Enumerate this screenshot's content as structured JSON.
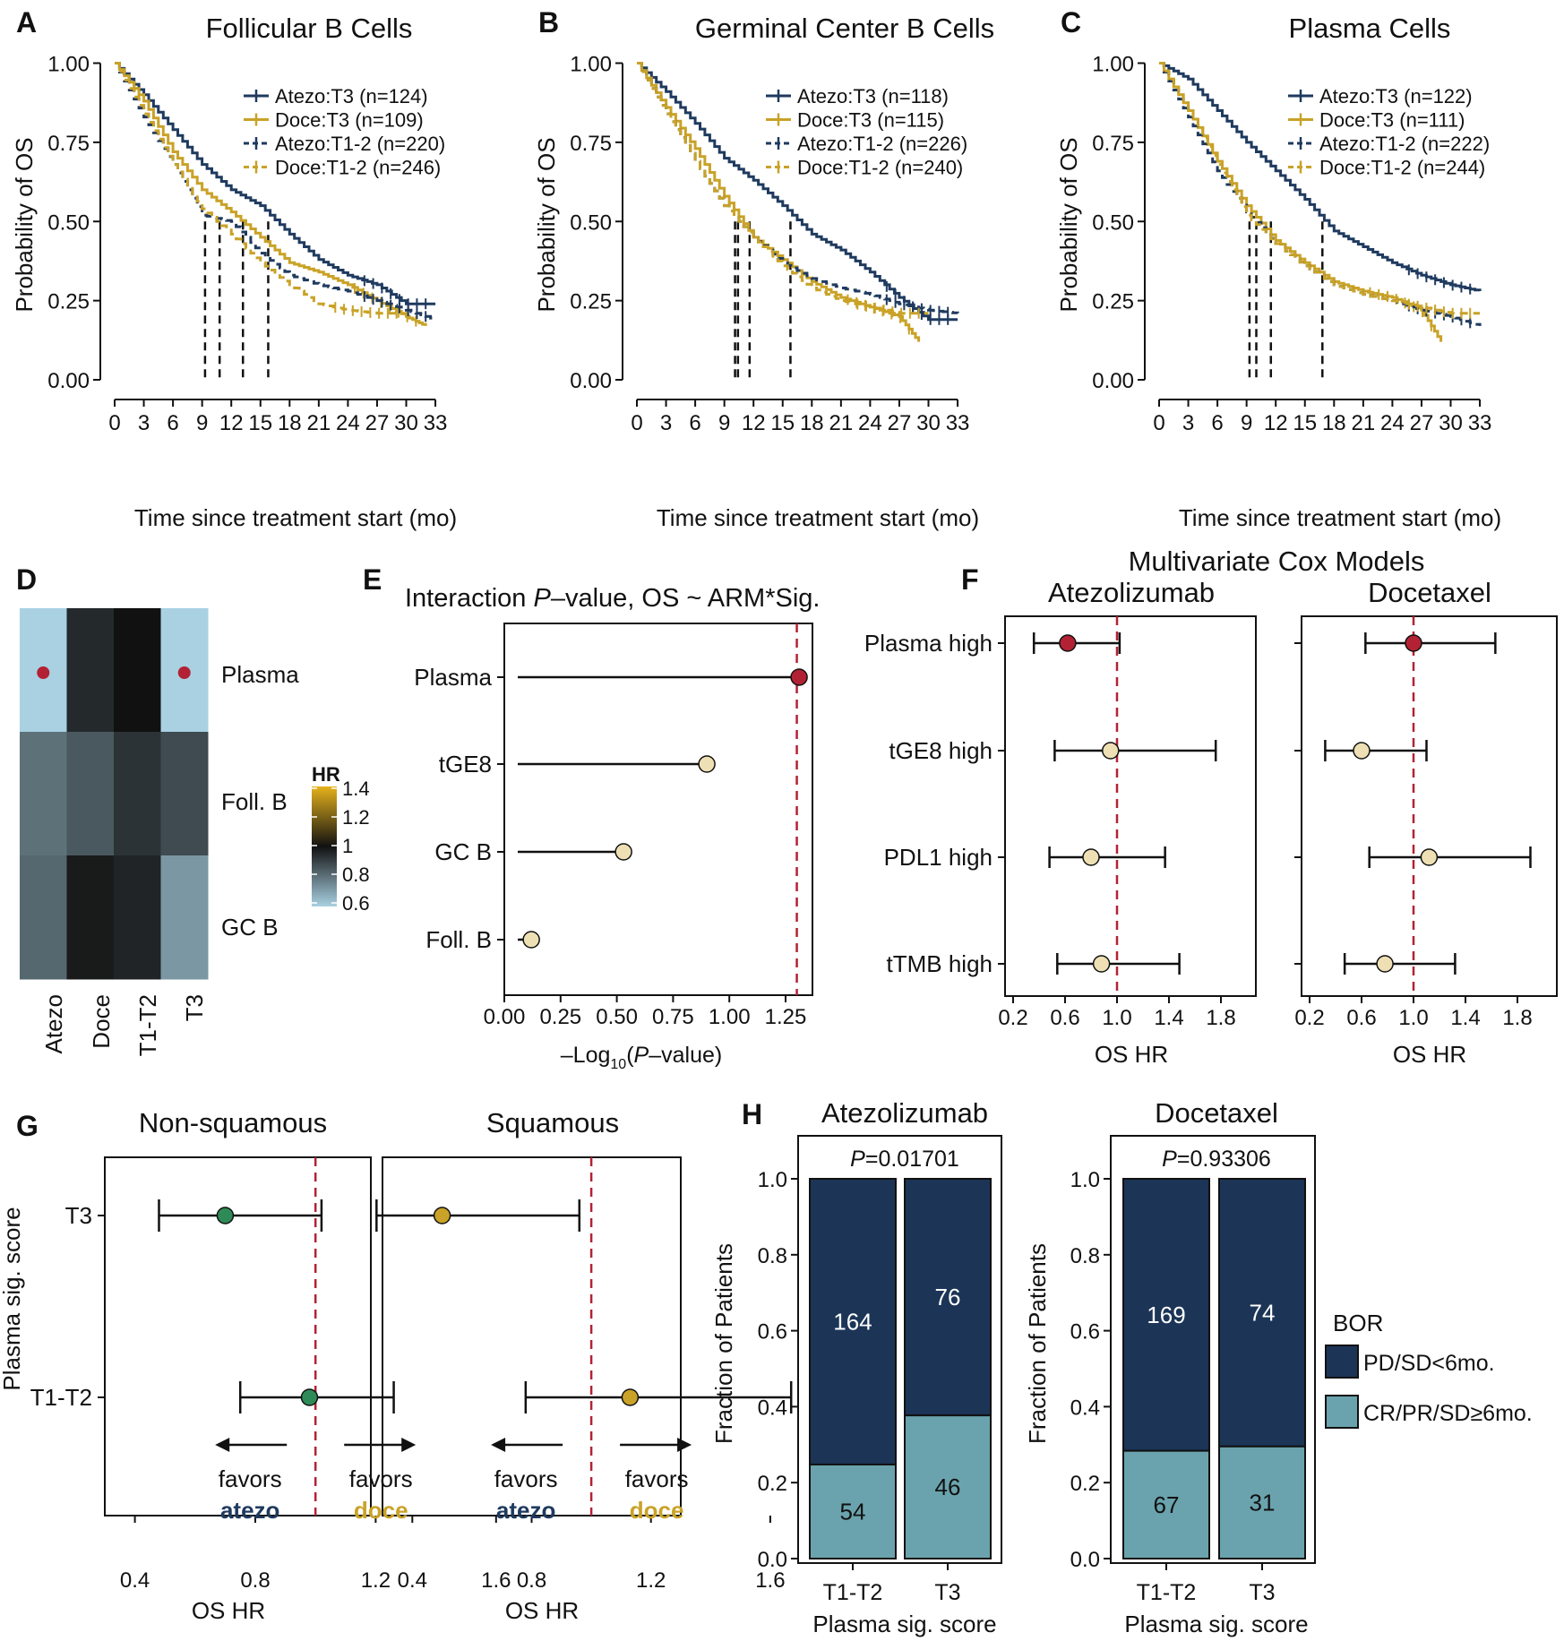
{
  "colors": {
    "atezo": "#1f3a5f",
    "doce": "#c9a227",
    "dash": "#111111",
    "sig_red": "#b22234",
    "nonsig": "#eee0b4",
    "green": "#2e8b57",
    "pd": "#1c3557",
    "cr": "#6aa3ad",
    "heat_low": "#a9d1e2",
    "heat_mid": "#111111",
    "heat_high": "#e5b21c"
  },
  "km": {
    "axis": {
      "ylabel": "Probability of OS",
      "xlabel": "Time since treatment start (mo)",
      "yticks": [
        "0.00",
        "0.25",
        "0.50",
        "0.75",
        "1.00"
      ],
      "xticks": [
        "0",
        "3",
        "6",
        "9",
        "12",
        "15",
        "18",
        "21",
        "24",
        "27",
        "30",
        "33"
      ]
    },
    "panels": [
      {
        "letter": "A",
        "title": "Follicular B Cells",
        "legend": [
          "Atezo:T3 (n=124)",
          "Doce:T3 (n=109)",
          "Atezo:T1-2 (n=220)",
          "Doce:T1-2 (n=246)"
        ],
        "medians": [
          9.3,
          10.8,
          13.2,
          15.8
        ],
        "curves": {
          "atezo_t3": [
            [
              0,
              1
            ],
            [
              3,
              0.9
            ],
            [
              6,
              0.79
            ],
            [
              9,
              0.68
            ],
            [
              12,
              0.6
            ],
            [
              15,
              0.55
            ],
            [
              18,
              0.46
            ],
            [
              21,
              0.38
            ],
            [
              24,
              0.33
            ],
            [
              27,
              0.3
            ],
            [
              30,
              0.24
            ],
            [
              33,
              0.24
            ]
          ],
          "doce_t3": [
            [
              0,
              1
            ],
            [
              3,
              0.88
            ],
            [
              6,
              0.72
            ],
            [
              9,
              0.6
            ],
            [
              12,
              0.53
            ],
            [
              15,
              0.45
            ],
            [
              18,
              0.37
            ],
            [
              21,
              0.34
            ],
            [
              24,
              0.3
            ],
            [
              27,
              0.25
            ],
            [
              30,
              0.2
            ],
            [
              32,
              0.17
            ]
          ],
          "atezo_t12": [
            [
              0,
              1
            ],
            [
              3,
              0.83
            ],
            [
              6,
              0.68
            ],
            [
              9,
              0.52
            ],
            [
              12,
              0.5
            ],
            [
              15,
              0.4
            ],
            [
              18,
              0.33
            ],
            [
              21,
              0.3
            ],
            [
              24,
              0.28
            ],
            [
              27,
              0.25
            ],
            [
              30,
              0.22
            ],
            [
              33,
              0.19
            ]
          ],
          "doce_t12": [
            [
              0,
              1
            ],
            [
              3,
              0.84
            ],
            [
              6,
              0.68
            ],
            [
              9,
              0.54
            ],
            [
              12,
              0.46
            ],
            [
              15,
              0.37
            ],
            [
              18,
              0.3
            ],
            [
              21,
              0.24
            ],
            [
              24,
              0.22
            ],
            [
              27,
              0.21
            ],
            [
              30,
              0.21
            ]
          ]
        }
      },
      {
        "letter": "B",
        "title": "Germinal Center B Cells",
        "legend": [
          "Atezo:T3 (n=118)",
          "Doce:T3 (n=115)",
          "Atezo:T1-2 (n=226)",
          "Doce:T1-2 (n=240)"
        ],
        "medians": [
          10.1,
          10.4,
          11.6,
          15.8
        ],
        "curves": {
          "atezo_t3": [
            [
              0,
              1
            ],
            [
              3,
              0.91
            ],
            [
              6,
              0.81
            ],
            [
              9,
              0.7
            ],
            [
              12,
              0.63
            ],
            [
              15,
              0.55
            ],
            [
              18,
              0.46
            ],
            [
              21,
              0.41
            ],
            [
              24,
              0.34
            ],
            [
              27,
              0.26
            ],
            [
              30,
              0.19
            ],
            [
              33,
              0.19
            ]
          ],
          "doce_t3": [
            [
              0,
              1
            ],
            [
              3,
              0.86
            ],
            [
              6,
              0.73
            ],
            [
              9,
              0.58
            ],
            [
              12,
              0.45
            ],
            [
              15,
              0.38
            ],
            [
              18,
              0.31
            ],
            [
              21,
              0.26
            ],
            [
              24,
              0.23
            ],
            [
              27,
              0.2
            ],
            [
              29,
              0.12
            ]
          ],
          "atezo_t12": [
            [
              0,
              1
            ],
            [
              3,
              0.84
            ],
            [
              6,
              0.69
            ],
            [
              9,
              0.55
            ],
            [
              12,
              0.45
            ],
            [
              15,
              0.37
            ],
            [
              18,
              0.32
            ],
            [
              21,
              0.29
            ],
            [
              24,
              0.27
            ],
            [
              27,
              0.24
            ],
            [
              30,
              0.22
            ],
            [
              33,
              0.21
            ]
          ],
          "doce_t12": [
            [
              0,
              1
            ],
            [
              3,
              0.84
            ],
            [
              6,
              0.69
            ],
            [
              9,
              0.55
            ],
            [
              12,
              0.45
            ],
            [
              15,
              0.36
            ],
            [
              18,
              0.29
            ],
            [
              21,
              0.25
            ],
            [
              24,
              0.23
            ],
            [
              27,
              0.21
            ],
            [
              30,
              0.21
            ]
          ]
        }
      },
      {
        "letter": "C",
        "title": "Plasma Cells",
        "legend": [
          "Atezo:T3 (n=122)",
          "Doce:T3 (n=111)",
          "Atezo:T1-2 (n=222)",
          "Doce:T1-2 (n=244)"
        ],
        "medians": [
          9.3,
          10.0,
          11.5,
          16.8
        ],
        "curves": {
          "atezo_t3": [
            [
              0,
              1
            ],
            [
              3,
              0.95
            ],
            [
              6,
              0.85
            ],
            [
              9,
              0.75
            ],
            [
              12,
              0.66
            ],
            [
              15,
              0.57
            ],
            [
              18,
              0.47
            ],
            [
              21,
              0.42
            ],
            [
              24,
              0.37
            ],
            [
              27,
              0.33
            ],
            [
              30,
              0.3
            ],
            [
              33,
              0.28
            ]
          ],
          "doce_t3": [
            [
              0,
              1
            ],
            [
              3,
              0.85
            ],
            [
              6,
              0.69
            ],
            [
              9,
              0.55
            ],
            [
              12,
              0.44
            ],
            [
              15,
              0.37
            ],
            [
              18,
              0.31
            ],
            [
              21,
              0.28
            ],
            [
              24,
              0.26
            ],
            [
              27,
              0.22
            ],
            [
              29,
              0.12
            ]
          ],
          "atezo_t12": [
            [
              0,
              1
            ],
            [
              3,
              0.83
            ],
            [
              6,
              0.66
            ],
            [
              9,
              0.53
            ],
            [
              12,
              0.43
            ],
            [
              15,
              0.36
            ],
            [
              18,
              0.3
            ],
            [
              21,
              0.27
            ],
            [
              24,
              0.25
            ],
            [
              27,
              0.22
            ],
            [
              30,
              0.2
            ],
            [
              33,
              0.17
            ]
          ],
          "doce_t12": [
            [
              0,
              1
            ],
            [
              3,
              0.85
            ],
            [
              6,
              0.68
            ],
            [
              9,
              0.52
            ],
            [
              12,
              0.43
            ],
            [
              15,
              0.36
            ],
            [
              18,
              0.3
            ],
            [
              21,
              0.27
            ],
            [
              24,
              0.25
            ],
            [
              27,
              0.23
            ],
            [
              30,
              0.21
            ],
            [
              33,
              0.21
            ]
          ]
        }
      }
    ]
  },
  "heatmap": {
    "letter": "D",
    "rows": [
      "Plasma",
      "Foll. B",
      "GC B"
    ],
    "cols": [
      "Atezo",
      "Doce",
      "T1-T2",
      "T3"
    ],
    "values": [
      [
        0.6,
        0.95,
        1.0,
        0.6
      ],
      [
        0.8,
        0.85,
        0.93,
        0.88
      ],
      [
        0.82,
        0.98,
        0.96,
        0.72
      ]
    ],
    "dots": [
      [
        0,
        0
      ],
      [
        0,
        3
      ]
    ],
    "legend_title": "HR",
    "legend_ticks": [
      "1.4",
      "1.2",
      "1",
      "0.8",
      "0.6"
    ]
  },
  "lollipop": {
    "letter": "E",
    "title_pre": "Interaction ",
    "title_italic": "P",
    "title_post": "–value, OS ~ ARM*Sig.",
    "labels": [
      "Plasma",
      "tGE8",
      "GC B",
      "Foll. B"
    ],
    "values": [
      1.31,
      0.9,
      0.53,
      0.12
    ],
    "significant": [
      true,
      false,
      false,
      false
    ],
    "threshold": 1.3,
    "xticks": [
      "0.00",
      "0.25",
      "0.50",
      "0.75",
      "1.00",
      "1.25"
    ],
    "xlabel_pre": "–Log",
    "xlabel_sub": "10",
    "xlabel_mid": "(",
    "xlabel_italic": "P",
    "xlabel_post": "–value)"
  },
  "cox": {
    "letter": "F",
    "title": "Multivariate Cox Models",
    "labels": [
      "Plasma high",
      "tGE8 high",
      "PDL1 high",
      "tTMB high"
    ],
    "xticks": [
      "0.2",
      "0.6",
      "1.0",
      "1.4",
      "1.8"
    ],
    "xlabel": "OS HR",
    "panels": [
      {
        "name": "Atezolizumab",
        "hr": [
          0.62,
          0.95,
          0.8,
          0.88
        ],
        "lo": [
          0.36,
          0.52,
          0.48,
          0.54
        ],
        "hi": [
          1.02,
          1.76,
          1.37,
          1.48
        ],
        "sig": [
          true,
          false,
          false,
          false
        ]
      },
      {
        "name": "Docetaxel",
        "hr": [
          1.0,
          0.6,
          1.12,
          0.78
        ],
        "lo": [
          0.63,
          0.32,
          0.66,
          0.47
        ],
        "hi": [
          1.63,
          1.1,
          1.9,
          1.32
        ],
        "sig": [
          true,
          false,
          false,
          false
        ]
      }
    ]
  },
  "subgroup": {
    "letter": "G",
    "ylabel": "Plasma sig. score",
    "labels": [
      "T3",
      "T1-T2"
    ],
    "xticks": [
      "0.4",
      "0.8",
      "1.2",
      "1.6"
    ],
    "xlabel": "OS HR",
    "favors": "favors",
    "atezo_word": "atezo",
    "doce_word": "doce",
    "panels": [
      {
        "name": "Non-squamous",
        "hr": [
          0.7,
          0.98
        ],
        "lo": [
          0.48,
          0.75
        ],
        "hi": [
          1.02,
          1.26
        ]
      },
      {
        "name": "Squamous",
        "hr": [
          0.5,
          1.13
        ],
        "lo": [
          0.28,
          0.78
        ],
        "hi": [
          0.96,
          1.67
        ]
      }
    ]
  },
  "bor": {
    "letter": "H",
    "ylabel": "Fraction of Patients",
    "xlabel": "Plasma sig. score",
    "categories": [
      "T1-T2",
      "T3"
    ],
    "yticks": [
      "0.0",
      "0.2",
      "0.4",
      "0.6",
      "0.8",
      "1.0"
    ],
    "legend_title": "BOR",
    "legend_items": [
      "PD/SD<6mo.",
      "CR/PR/SD≥6mo."
    ],
    "p_label": "P",
    "panels": [
      {
        "name": "Atezolizumab",
        "p_value": "=0.01701",
        "pd": [
          164,
          76
        ],
        "cr": [
          54,
          46
        ]
      },
      {
        "name": "Docetaxel",
        "p_value": "=0.93306",
        "pd": [
          169,
          74
        ],
        "cr": [
          67,
          31
        ]
      }
    ]
  }
}
